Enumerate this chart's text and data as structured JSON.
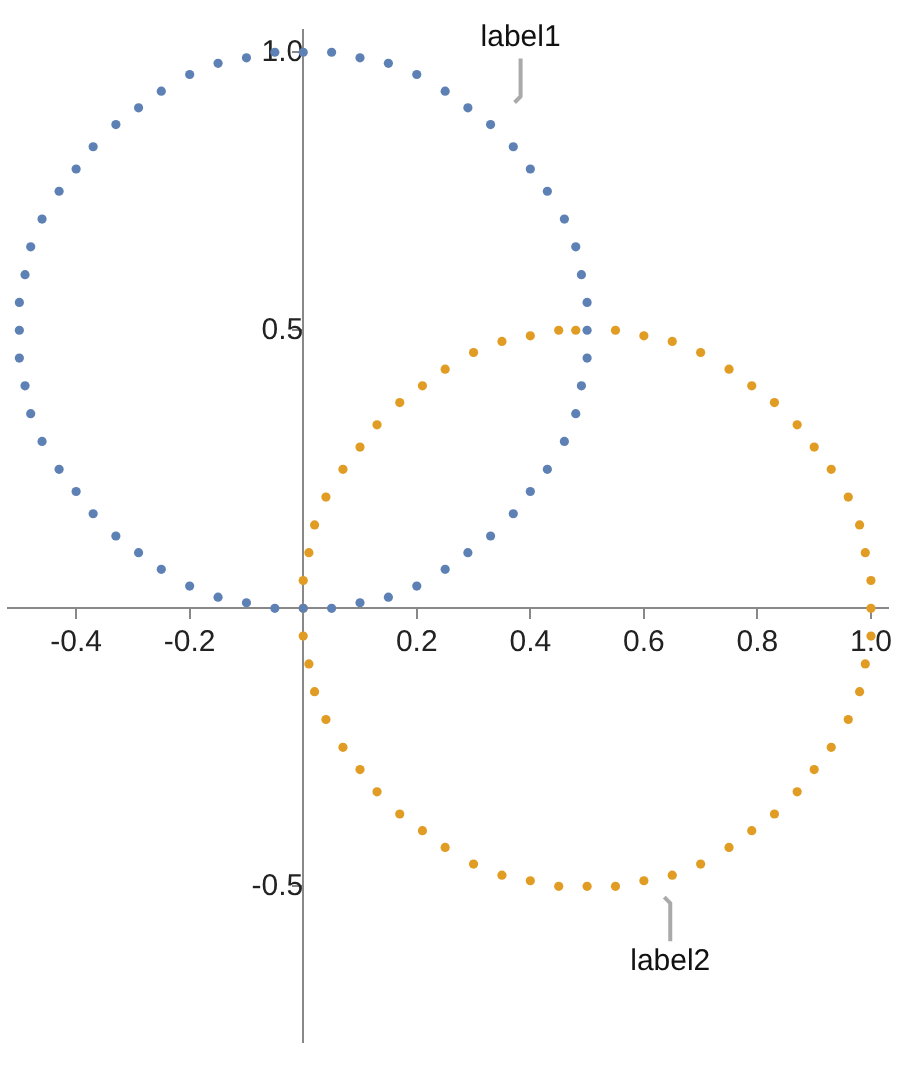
{
  "chart_data": {
    "type": "scatter",
    "series": [
      {
        "color": "#5e81b5",
        "x": [
          0,
          0.05,
          0.1,
          0.15,
          0.2,
          0.25,
          0.29,
          0.33,
          0.37,
          0.4,
          0.43,
          0.46,
          0.48,
          0.49,
          0.5,
          0.5,
          0.5,
          0.49,
          0.48,
          0.46,
          0.43,
          0.4,
          0.37,
          0.33,
          0.29,
          0.25,
          0.2,
          0.15,
          0.1,
          0.05,
          0,
          -0.05,
          -0.1,
          -0.15,
          -0.2,
          -0.25,
          -0.29,
          -0.33,
          -0.37,
          -0.4,
          -0.43,
          -0.46,
          -0.48,
          -0.49,
          -0.5,
          -0.5,
          -0.5,
          -0.49,
          -0.48,
          -0.46,
          -0.43,
          -0.4,
          -0.37,
          -0.33,
          -0.29,
          -0.25,
          -0.2,
          -0.15,
          -0.1,
          -0.05
        ],
        "values": [
          0,
          0,
          0.01,
          0.02,
          0.04,
          0.07,
          0.1,
          0.13,
          0.17,
          0.21,
          0.25,
          0.3,
          0.35,
          0.4,
          0.45,
          0.5,
          0.55,
          0.6,
          0.65,
          0.7,
          0.75,
          0.79,
          0.83,
          0.87,
          0.9,
          0.93,
          0.96,
          0.98,
          0.99,
          1,
          1,
          1,
          0.99,
          0.98,
          0.96,
          0.93,
          0.9,
          0.87,
          0.83,
          0.79,
          0.75,
          0.7,
          0.65,
          0.6,
          0.55,
          0.5,
          0.45,
          0.4,
          0.35,
          0.3,
          0.25,
          0.21,
          0.17,
          0.13,
          0.1,
          0.07,
          0.04,
          0.02,
          0.01,
          0
        ]
      },
      {
        "color": "#e19c24",
        "x": [
          0,
          0,
          0.01,
          0.02,
          0.04,
          0.07,
          0.1,
          0.13,
          0.17,
          0.21,
          0.25,
          0.3,
          0.35,
          0.4,
          0.45,
          0.48,
          0.55,
          0.6,
          0.65,
          0.7,
          0.75,
          0.79,
          0.83,
          0.87,
          0.9,
          0.93,
          0.96,
          0.98,
          0.99,
          1,
          1,
          1,
          0.99,
          0.98,
          0.96,
          0.93,
          0.9,
          0.87,
          0.83,
          0.79,
          0.75,
          0.7,
          0.65,
          0.6,
          0.55,
          0.5,
          0.45,
          0.4,
          0.35,
          0.3,
          0.25,
          0.21,
          0.17,
          0.13,
          0.1,
          0.07,
          0.04,
          0.02,
          0.01,
          0
        ],
        "values": [
          0,
          0.05,
          0.1,
          0.15,
          0.2,
          0.25,
          0.29,
          0.33,
          0.37,
          0.4,
          0.43,
          0.46,
          0.48,
          0.49,
          0.5,
          0.5,
          0.5,
          0.49,
          0.48,
          0.46,
          0.43,
          0.4,
          0.37,
          0.33,
          0.29,
          0.25,
          0.2,
          0.15,
          0.1,
          0.05,
          0,
          -0.05,
          -0.1,
          -0.15,
          -0.2,
          -0.25,
          -0.29,
          -0.33,
          -0.37,
          -0.4,
          -0.43,
          -0.46,
          -0.48,
          -0.49,
          -0.5,
          -0.5,
          -0.5,
          -0.49,
          -0.48,
          -0.46,
          -0.43,
          -0.4,
          -0.37,
          -0.33,
          -0.29,
          -0.25,
          -0.2,
          -0.15,
          -0.1,
          -0.05
        ]
      }
    ],
    "xlim": [
      -0.52,
      1.03
    ],
    "ylim": [
      -0.78,
      1.04
    ],
    "xticks": [
      -0.4,
      -0.2,
      0.2,
      0.4,
      0.6,
      0.8,
      {
        "value": 1,
        "label": "1.0"
      }
    ],
    "yticks": [
      -0.5,
      0.5,
      {
        "value": 1,
        "label": "1.0"
      }
    ],
    "annotations": [
      {
        "text": "label1",
        "x": 0.33,
        "y": 0.87
      },
      {
        "text": "label2",
        "x": 0.65,
        "y": -0.48
      }
    ],
    "marker": "circle",
    "grid": false,
    "legend": false
  }
}
